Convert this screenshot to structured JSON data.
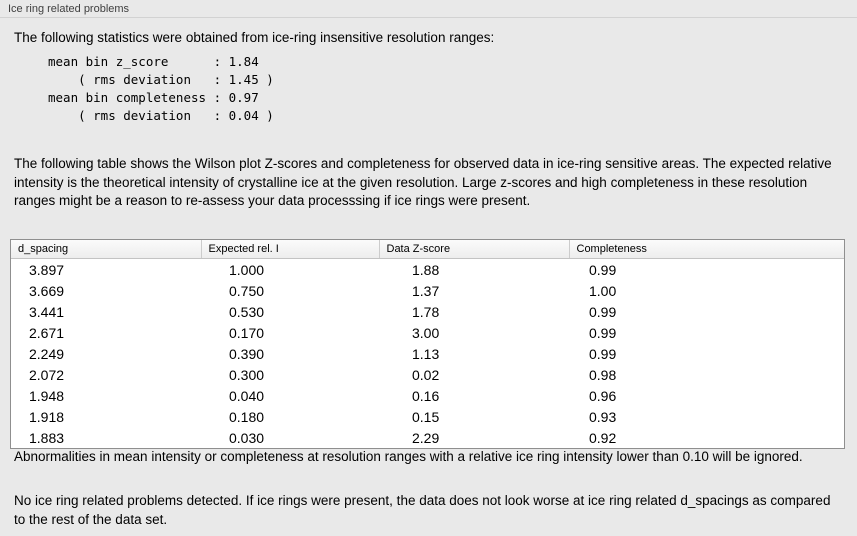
{
  "panel": {
    "title": "Ice ring related problems"
  },
  "intro": "The following statistics were obtained from ice-ring insensitive resolution ranges:",
  "stats_lines": [
    "mean bin z_score      : 1.84",
    "    ( rms deviation   : 1.45 )",
    "mean bin completeness : 0.97",
    "    ( rms deviation   : 0.04 )"
  ],
  "description": "The following table shows the Wilson plot Z-scores and completeness for observed data in ice-ring sensitive areas. The expected relative intensity is the theoretical intensity of crystalline ice at the given resolution. Large z-scores and high completeness in these resolution ranges might be a reason to re-assess your data processsing if ice rings were present.",
  "table": {
    "headers": [
      "d_spacing",
      "Expected rel. I",
      "Data Z-score",
      "Completeness"
    ],
    "rows": [
      [
        "3.897",
        "1.000",
        "1.88",
        "0.99"
      ],
      [
        "3.669",
        "0.750",
        "1.37",
        "1.00"
      ],
      [
        "3.441",
        "0.530",
        "1.78",
        "0.99"
      ],
      [
        "2.671",
        "0.170",
        "3.00",
        "0.99"
      ],
      [
        "2.249",
        "0.390",
        "1.13",
        "0.99"
      ],
      [
        "2.072",
        "0.300",
        "0.02",
        "0.98"
      ],
      [
        "1.948",
        "0.040",
        "0.16",
        "0.96"
      ],
      [
        "1.918",
        "0.180",
        "0.15",
        "0.93"
      ],
      [
        "1.883",
        "0.030",
        "2.29",
        "0.92"
      ]
    ]
  },
  "note_ignore": "Abnormalities in mean intensity or completeness at resolution ranges with a relative ice ring intensity lower than 0.10 will be ignored.",
  "conclusion": "No ice ring related problems detected. If ice rings were present, the data does not look worse at ice ring related d_spacings as compared to the rest of the data set.",
  "colors": {
    "background": "#e9e9e9",
    "table_background": "#ffffff",
    "table_border": "#8f8f8f"
  }
}
